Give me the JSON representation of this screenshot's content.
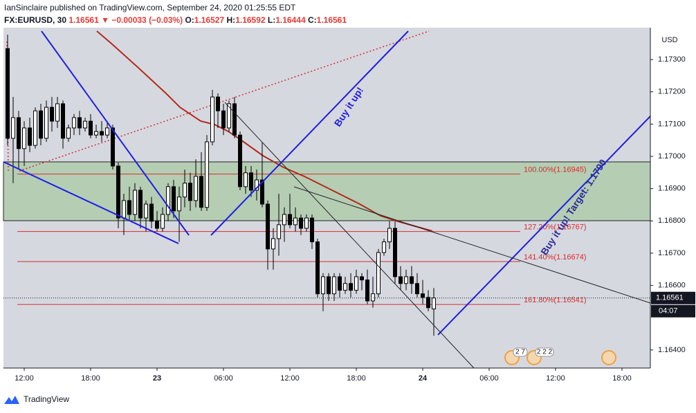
{
  "chart_data": {
    "type": "candlestick",
    "title": "IanSinclaire published on TradingView.com, September 24, 2020 01:25:55 EDT",
    "symbol": "FX:EURUSD, 30",
    "change": "−0.00033 (−0.03%)",
    "ohlc_labels": [
      "O:",
      "H:",
      "L:",
      "C:"
    ],
    "currency": "USD",
    "ohlc": {
      "open": [
        1.17334,
        1.17056,
        1.1712,
        1.17024,
        1.17088,
        1.17034,
        1.17141,
        1.17056,
        1.17152,
        1.17109,
        1.17163,
        1.17056,
        1.17088,
        1.1712,
        1.17088,
        1.17109,
        1.17066,
        1.17077,
        1.17066,
        1.17088,
        1.1697,
        1.16809,
        1.16863,
        1.1682,
        1.16895,
        1.16809,
        1.16852,
        1.16799,
        1.16777,
        1.1682,
        1.16906,
        1.16831,
        1.16874,
        1.16917,
        1.16863,
        1.16938,
        1.16842,
        1.17045,
        1.17184,
        1.17141,
        1.17088,
        1.17163,
        1.17066,
        1.16906,
        1.16949,
        1.16895,
        1.16927,
        1.16852,
        1.16713,
        1.16745,
        1.16788,
        1.1682,
        1.16788,
        1.16809,
        1.16777,
        1.16809,
        1.16735,
        1.16574,
        1.16627,
        1.16574,
        1.16627,
        1.16585,
        1.16606,
        1.16585,
        1.16627,
        1.16617,
        1.16552,
        1.16574,
        1.16702,
        1.16735,
        1.16777,
        1.16627,
        1.16606,
        1.16627,
        1.16606,
        1.16574,
        1.16563,
        1.16527
      ],
      "high": [
        1.17377,
        1.17184,
        1.17141,
        1.17109,
        1.1712,
        1.17152,
        1.17163,
        1.17173,
        1.17184,
        1.17184,
        1.17173,
        1.17098,
        1.17131,
        1.17141,
        1.1712,
        1.17131,
        1.17098,
        1.17109,
        1.17109,
        1.17098,
        1.16981,
        1.16884,
        1.16906,
        1.16917,
        1.16906,
        1.16863,
        1.16874,
        1.16831,
        1.16842,
        1.16917,
        1.16927,
        1.16906,
        1.16959,
        1.16949,
        1.16991,
        1.17013,
        1.17066,
        1.17206,
        1.17195,
        1.17163,
        1.17173,
        1.17184,
        1.17077,
        1.1697,
        1.1697,
        1.16959,
        1.17045,
        1.16863,
        1.16777,
        1.16884,
        1.16842,
        1.16884,
        1.16842,
        1.1682,
        1.1682,
        1.1682,
        1.16745,
        1.16638,
        1.16638,
        1.16638,
        1.16638,
        1.16627,
        1.16638,
        1.16649,
        1.16638,
        1.16649,
        1.16627,
        1.16713,
        1.16745,
        1.16799,
        1.16799,
        1.1666,
        1.16649,
        1.1666,
        1.16638,
        1.16617,
        1.16585,
        1.16592
      ],
      "low": [
        1.17034,
        1.16917,
        1.16959,
        1.1697,
        1.17013,
        1.17024,
        1.17034,
        1.17045,
        1.17077,
        1.17088,
        1.17024,
        1.17045,
        1.17066,
        1.17066,
        1.17077,
        1.17056,
        1.17056,
        1.17045,
        1.17056,
        1.16959,
        1.16777,
        1.16756,
        1.16799,
        1.16799,
        1.16777,
        1.16767,
        1.16777,
        1.16767,
        1.16767,
        1.16799,
        1.16809,
        1.16735,
        1.16842,
        1.16831,
        1.16842,
        1.16831,
        1.16831,
        1.17034,
        1.17088,
        1.17066,
        1.17077,
        1.17056,
        1.16895,
        1.16884,
        1.16874,
        1.16863,
        1.16842,
        1.16649,
        1.16649,
        1.16692,
        1.16735,
        1.16777,
        1.16767,
        1.16756,
        1.16767,
        1.16713,
        1.16563,
        1.1652,
        1.16552,
        1.16552,
        1.16563,
        1.16574,
        1.16563,
        1.16574,
        1.16585,
        1.16542,
        1.16531,
        1.16563,
        1.16692,
        1.16713,
        1.16606,
        1.16585,
        1.16585,
        1.16574,
        1.16563,
        1.16542,
        1.1652,
        1.16444
      ],
      "close": [
        1.17056,
        1.1712,
        1.17024,
        1.17088,
        1.17034,
        1.17141,
        1.17056,
        1.17152,
        1.17109,
        1.17163,
        1.17056,
        1.17088,
        1.1712,
        1.17088,
        1.17109,
        1.17066,
        1.17077,
        1.17066,
        1.17088,
        1.1697,
        1.16809,
        1.16863,
        1.1682,
        1.16895,
        1.16809,
        1.16852,
        1.16799,
        1.16777,
        1.1682,
        1.16906,
        1.16831,
        1.16874,
        1.16917,
        1.16863,
        1.16938,
        1.16842,
        1.17045,
        1.17184,
        1.17141,
        1.17088,
        1.17163,
        1.17066,
        1.16906,
        1.16949,
        1.16895,
        1.16927,
        1.16852,
        1.16713,
        1.16745,
        1.16788,
        1.1682,
        1.16788,
        1.16809,
        1.16777,
        1.16809,
        1.16735,
        1.16574,
        1.16627,
        1.16574,
        1.16627,
        1.16585,
        1.16606,
        1.16585,
        1.16627,
        1.16617,
        1.16552,
        1.16574,
        1.16702,
        1.16735,
        1.16777,
        1.16627,
        1.16606,
        1.16627,
        1.16606,
        1.16574,
        1.16563,
        1.16531,
        1.16561
      ]
    },
    "color_up": "#ffffff",
    "color_down": "#000000",
    "ylim": [
      1.16344,
      1.17388
    ],
    "yticks": [
      {
        "value": 1.173,
        "label": "1.17300"
      },
      {
        "value": 1.172,
        "label": "1.17200"
      },
      {
        "value": 1.171,
        "label": "1.17100"
      },
      {
        "value": 1.17,
        "label": "1.17000"
      },
      {
        "value": 1.169,
        "label": "1.16900"
      },
      {
        "value": 1.168,
        "label": "1.16800"
      },
      {
        "value": 1.167,
        "label": "1.16700"
      },
      {
        "value": 1.166,
        "label": "1.16600"
      },
      {
        "value": 1.164,
        "label": "1.16400"
      }
    ],
    "xlim": [
      -0.75,
      116.125
    ],
    "xticks": [
      {
        "value": 3,
        "label": "12:00"
      },
      {
        "value": 15,
        "label": "18:00"
      },
      {
        "value": 27,
        "label": "23"
      },
      {
        "value": 39,
        "label": "06:00"
      },
      {
        "value": 51,
        "label": "12:00"
      },
      {
        "value": 63,
        "label": "18:00"
      },
      {
        "value": 75,
        "label": "24"
      },
      {
        "value": 87,
        "label": "06:00"
      },
      {
        "value": 99,
        "label": "12:00"
      },
      {
        "value": 111,
        "label": "18:00"
      }
    ],
    "grid": true,
    "fib_levels": [
      {
        "label": "100.00%(1.16945)",
        "value": 1.16945
      },
      {
        "label": "127.20%(1.16767)",
        "value": 1.16767
      },
      {
        "label": "141.40%(1.16674)",
        "value": 1.16674
      },
      {
        "label": "161.80%(1.16541)",
        "value": 1.16541
      }
    ],
    "fib_color": "#d32f2f",
    "countdown": "04:07",
    "annotations": [
      "Buy it up!",
      "Buy it up! Target: 1.1790"
    ],
    "events": [
      "2 7",
      "2 2 2"
    ],
    "footer": "TradingView"
  }
}
